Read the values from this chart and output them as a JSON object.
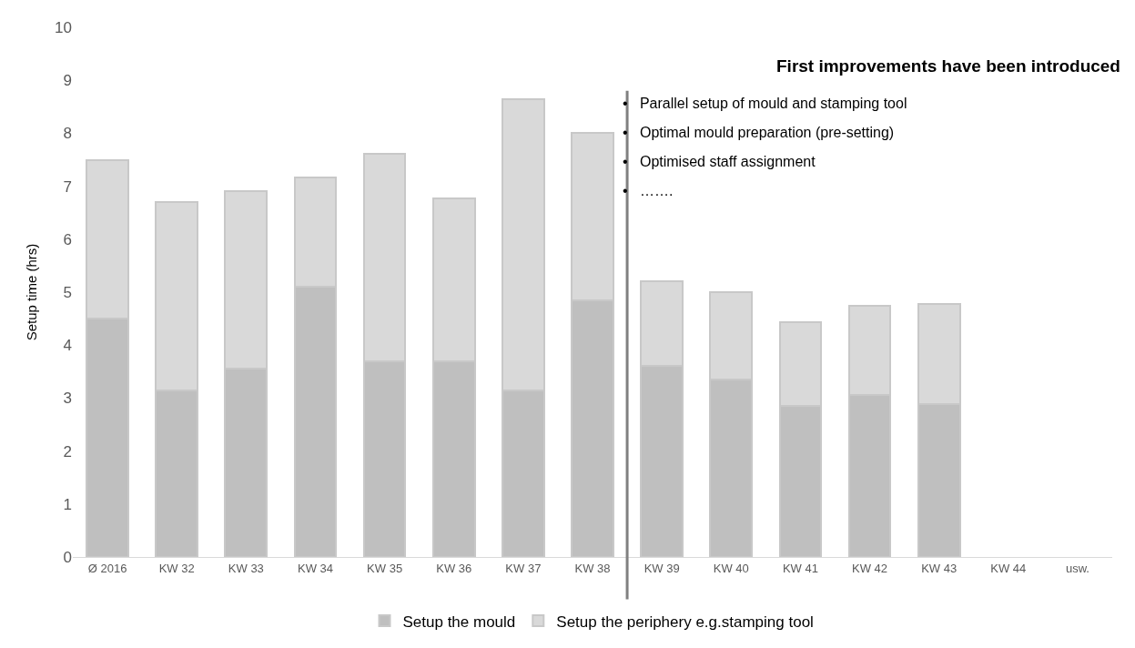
{
  "chart_data": {
    "type": "bar",
    "stacked": true,
    "ylabel": "Setup time (hrs)",
    "categories": [
      "Ø 2016",
      "KW 32",
      "KW 33",
      "KW 34",
      "KW 35",
      "KW 36",
      "KW 37",
      "KW 38",
      "KW 39",
      "KW 40",
      "KW 41",
      "KW 42",
      "KW 43",
      "KW 44",
      "usw."
    ],
    "series": [
      {
        "name": "Setup the mould",
        "color": "#bfbfbf",
        "values": [
          4.5,
          3.15,
          3.55,
          5.1,
          3.7,
          3.7,
          3.15,
          4.85,
          3.6,
          3.35,
          2.85,
          3.05,
          2.88,
          null,
          null
        ]
      },
      {
        "name": "Setup the periphery e.g.stamping tool",
        "color": "#d9d9d9",
        "values": [
          3.0,
          3.55,
          3.35,
          2.07,
          3.92,
          3.07,
          5.5,
          3.15,
          1.6,
          1.65,
          1.58,
          1.7,
          1.89,
          null,
          null
        ]
      }
    ],
    "ylim": [
      0,
      10
    ],
    "yticks": [
      0,
      1,
      2,
      3,
      4,
      5,
      6,
      7,
      8,
      9,
      10
    ],
    "grid": false,
    "legend": "bottom",
    "annotations": [
      "First improvements have been introduced",
      "•   Parallel setup of mould and stamping tool",
      "•   Optimal mould preparation (pre-setting)",
      "•   Optimised staff assignment",
      "•   ……."
    ]
  }
}
